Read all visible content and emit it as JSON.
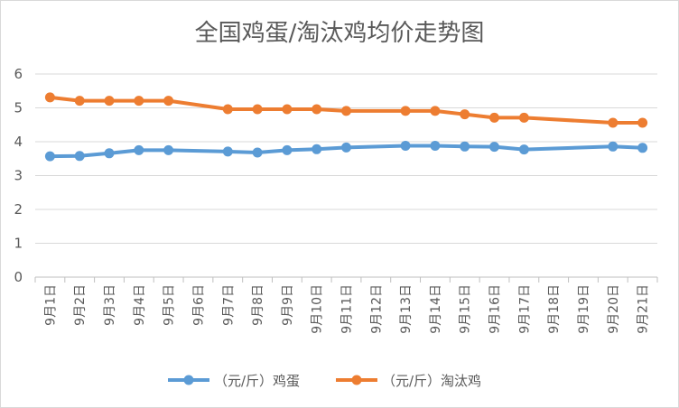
{
  "chart_data": {
    "type": "line",
    "title": "全国鸡蛋/淘汰鸡均价走势图",
    "categories": [
      "9月1日",
      "9月2日",
      "9月3日",
      "9月4日",
      "9月5日",
      "9月6日",
      "9月7日",
      "9月8日",
      "9月9日",
      "9月10日",
      "9月11日",
      "9月12日",
      "9月13日",
      "9月14日",
      "9月15日",
      "9月16日",
      "9月17日",
      "9月18日",
      "9月19日",
      "9月20日",
      "9月21日"
    ],
    "yticks": [
      "0",
      "1",
      "2",
      "3",
      "4",
      "5",
      "6"
    ],
    "ylim": [
      0,
      6
    ],
    "grid": "horizontal",
    "legend_position": "bottom",
    "series": [
      {
        "name": "（元/斤）鸡蛋",
        "color": "#5b9bd5",
        "values": [
          3.57,
          3.58,
          3.66,
          3.75,
          3.75,
          null,
          3.71,
          3.68,
          3.75,
          3.78,
          3.83,
          null,
          3.88,
          3.88,
          3.86,
          3.85,
          3.77,
          null,
          null,
          3.86,
          3.82
        ]
      },
      {
        "name": "（元/斤）淘汰鸡",
        "color": "#ed7d31",
        "values": [
          5.31,
          5.21,
          5.21,
          5.21,
          5.21,
          null,
          4.96,
          4.96,
          4.96,
          4.96,
          4.91,
          null,
          4.91,
          4.91,
          4.81,
          4.71,
          4.71,
          null,
          null,
          4.56,
          4.56
        ]
      }
    ]
  }
}
